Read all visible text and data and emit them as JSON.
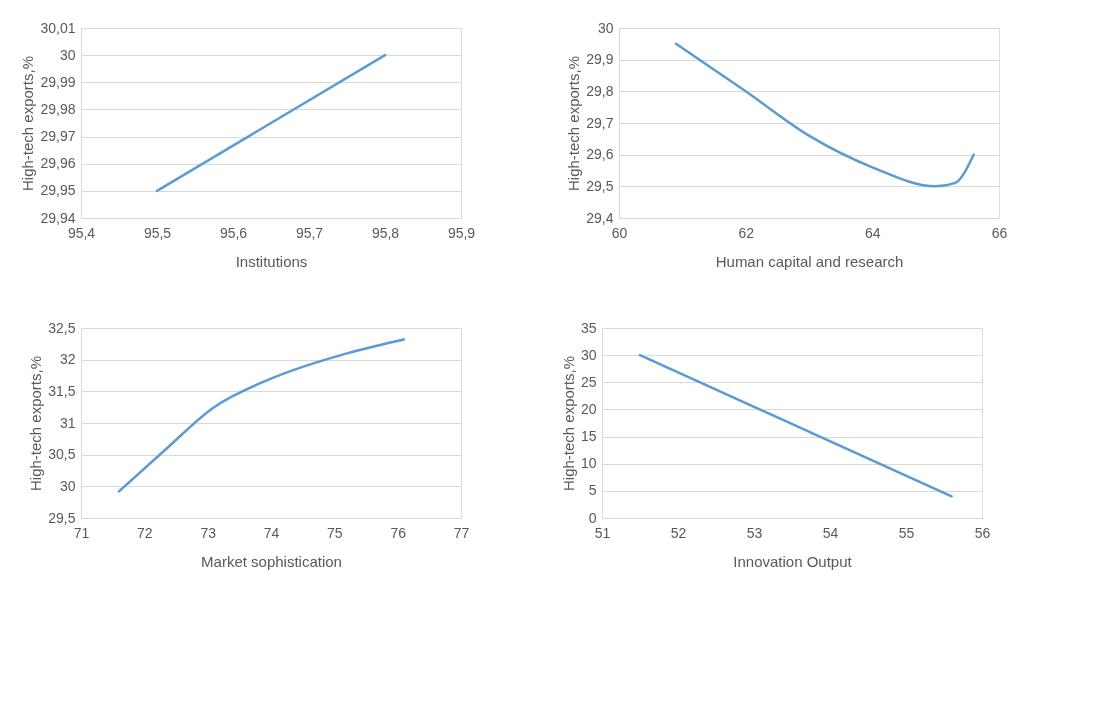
{
  "chart_data": [
    {
      "type": "line",
      "xlabel": "Institutions",
      "ylabel": "High-tech exports,%",
      "x": [
        95.5,
        95.8
      ],
      "series": [
        {
          "color": "#5b9bd5",
          "values": [
            29.95,
            30.0
          ]
        }
      ],
      "xlim": [
        95.4,
        95.9
      ],
      "xticks": [
        {
          "value": 95.4,
          "label": "95,4"
        },
        {
          "value": 95.5,
          "label": "95,5"
        },
        {
          "value": 95.6,
          "label": "95,6"
        },
        {
          "value": 95.7,
          "label": "95,7"
        },
        {
          "value": 95.8,
          "label": "95,8"
        },
        {
          "value": 95.9,
          "label": "95,9"
        }
      ],
      "ylim": [
        29.94,
        30.01
      ],
      "yticks": [
        {
          "value": 29.94,
          "label": "29,94"
        },
        {
          "value": 29.95,
          "label": "29,95"
        },
        {
          "value": 29.96,
          "label": "29,96"
        },
        {
          "value": 29.97,
          "label": "29,97"
        },
        {
          "value": 29.98,
          "label": "29,98"
        },
        {
          "value": 29.99,
          "label": "29,99"
        },
        30,
        {
          "value": 30.01,
          "label": "30,01"
        }
      ],
      "grid": "y"
    },
    {
      "type": "line",
      "xlabel": "Human capital and research",
      "ylabel": "High-tech exports,%",
      "x": [
        60.9,
        62,
        63,
        64,
        65,
        65.3,
        65.6
      ],
      "series": [
        {
          "color": "#5b9bd5",
          "values": [
            29.95,
            29.8,
            29.66,
            29.56,
            29.5,
            29.51,
            29.6
          ]
        }
      ],
      "xlim": [
        60,
        66
      ],
      "xticks": [
        60,
        62,
        64,
        66
      ],
      "ylim": [
        29.4,
        30
      ],
      "yticks": [
        {
          "value": 29.4,
          "label": "29,4"
        },
        {
          "value": 29.5,
          "label": "29,5"
        },
        {
          "value": 29.6,
          "label": "29,6"
        },
        {
          "value": 29.7,
          "label": "29,7"
        },
        {
          "value": 29.8,
          "label": "29,8"
        },
        {
          "value": 29.9,
          "label": "29,9"
        },
        30
      ],
      "grid": "y"
    },
    {
      "type": "line",
      "xlabel": "Market sophistication",
      "ylabel": "High-tech exports,%",
      "x": [
        71.6,
        72.3,
        73.1,
        74,
        75.2,
        76.1
      ],
      "series": [
        {
          "color": "#5b9bd5",
          "values": [
            29.92,
            30.55,
            31.25,
            31.7,
            32.1,
            32.32
          ]
        }
      ],
      "xlim": [
        71,
        77
      ],
      "xticks": [
        71,
        72,
        73,
        74,
        75,
        76,
        77
      ],
      "ylim": [
        29.5,
        32.5
      ],
      "yticks": [
        {
          "value": 29.5,
          "label": "29,5"
        },
        30,
        {
          "value": 30.5,
          "label": "30,5"
        },
        31,
        {
          "value": 31.5,
          "label": "31,5"
        },
        32,
        {
          "value": 32.5,
          "label": "32,5"
        }
      ],
      "grid": "y"
    },
    {
      "type": "line",
      "xlabel": "Innovation Output",
      "ylabel": "High-tech exports,%",
      "x": [
        51.5,
        55.6
      ],
      "series": [
        {
          "color": "#5b9bd5",
          "values": [
            30,
            4
          ]
        }
      ],
      "xlim": [
        51,
        56
      ],
      "xticks": [
        51,
        52,
        53,
        54,
        55,
        56
      ],
      "ylim": [
        0,
        35
      ],
      "yticks": [
        0,
        5,
        10,
        15,
        20,
        25,
        30,
        35
      ],
      "grid": "y"
    }
  ]
}
